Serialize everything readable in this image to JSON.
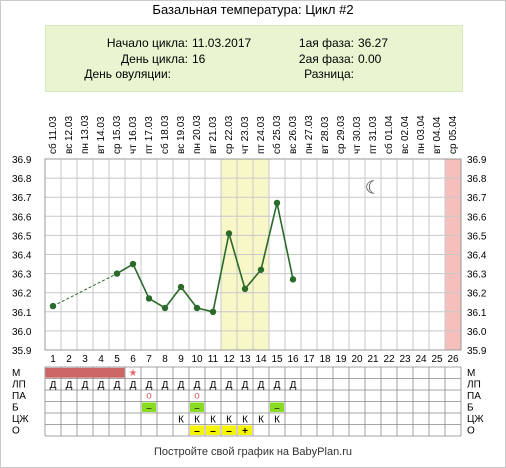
{
  "title": "Базальная температура: Цикл #2",
  "info": {
    "cycle_start_label": "Начало цикла:",
    "cycle_start_value": "11.03.2017",
    "cycle_day_label": "День цикла:",
    "cycle_day_value": "16",
    "ovulation_day_label": "День овуляции:",
    "ovulation_day_value": "",
    "phase1_label": "1ая фаза:",
    "phase1_value": "36.27",
    "phase2_label": "2ая фаза:",
    "phase2_value": "0.00",
    "difference_label": "Разница:",
    "difference_value": ""
  },
  "footer": "Постройте свой график на BabyPlan.ru",
  "colors": {
    "line": "#2a6a2a",
    "grid": "#c8c8c8",
    "highlight": "#f7f7c8",
    "highlight_border": "#e0e0a0",
    "pink": "#f5c0bb",
    "menses_bar": "#cc6666",
    "green_cell": "#88dd22",
    "yellow_cell": "#f5f500",
    "circle_mark": "#d06060",
    "star": "#e07070"
  },
  "chart_data": {
    "type": "line",
    "title": "",
    "ylim": [
      35.9,
      36.9
    ],
    "y_ticks": [
      "36.9",
      "36.8",
      "36.7",
      "36.6",
      "36.5",
      "36.4",
      "36.3",
      "36.2",
      "36.1",
      "36.0",
      "35.9"
    ],
    "days": [
      "1",
      "2",
      "3",
      "4",
      "5",
      "6",
      "7",
      "8",
      "9",
      "10",
      "11",
      "12",
      "13",
      "14",
      "15",
      "16",
      "17",
      "18",
      "19",
      "20",
      "21",
      "22",
      "23",
      "24",
      "25",
      "26"
    ],
    "weekdays": [
      "сб",
      "вс",
      "пн",
      "вт",
      "ср",
      "чт",
      "пт",
      "сб",
      "вс",
      "пн",
      "вт",
      "ср",
      "чт",
      "пт",
      "сб",
      "вс",
      "пн",
      "вт",
      "ср",
      "чт",
      "пт",
      "сб",
      "вс",
      "пн",
      "вт",
      "ср"
    ],
    "dates": [
      "11.03",
      "12.03",
      "13.03",
      "14.03",
      "15.03",
      "16.03",
      "17.03",
      "18.03",
      "19.03",
      "20.03",
      "21.03",
      "22.03",
      "23.03",
      "24.03",
      "25.03",
      "26.03",
      "27.03",
      "28.03",
      "29.03",
      "30.03",
      "31.03",
      "01.04",
      "02.04",
      "03.04",
      "04.04",
      "05.04"
    ],
    "temperatures": [
      {
        "day": 1,
        "value": 36.13
      },
      {
        "day": 5,
        "value": 36.3
      },
      {
        "day": 6,
        "value": 36.35
      },
      {
        "day": 7,
        "value": 36.17
      },
      {
        "day": 8,
        "value": 36.12
      },
      {
        "day": 9,
        "value": 36.23
      },
      {
        "day": 10,
        "value": 36.12
      },
      {
        "day": 11,
        "value": 36.1
      },
      {
        "day": 12,
        "value": 36.51
      },
      {
        "day": 13,
        "value": 36.22
      },
      {
        "day": 14,
        "value": 36.32
      },
      {
        "day": 15,
        "value": 36.67
      },
      {
        "day": 16,
        "value": 36.27
      }
    ],
    "dashed_gap": [
      1,
      5
    ],
    "highlight_days": [
      12,
      13,
      14
    ],
    "today_day": 26,
    "moon_icon_day": 21,
    "moon_icon_value": 36.75
  },
  "symptoms": {
    "rows": [
      "М",
      "ЛП",
      "ПА",
      "Б",
      "ЦЖ",
      "О"
    ],
    "menses_days": [
      1,
      2,
      3,
      4,
      5
    ],
    "star_day": 6,
    "star_glyph": "★",
    "lp_days": [
      1,
      2,
      3,
      4,
      5,
      6,
      7,
      8,
      9,
      10,
      11,
      12,
      13,
      14,
      15,
      16
    ],
    "lp_glyph": "Д",
    "pa_days": [
      7,
      10
    ],
    "pa_glyph": "о",
    "b_days": [
      7,
      10,
      15
    ],
    "b_glyph": "–",
    "czh_days": [
      9,
      10,
      11,
      12,
      13,
      14,
      15
    ],
    "czh_glyph": "К",
    "o_cells": [
      {
        "day": 10,
        "glyph": "–"
      },
      {
        "day": 11,
        "glyph": "–"
      },
      {
        "day": 12,
        "glyph": "–"
      },
      {
        "day": 13,
        "glyph": "+"
      }
    ]
  }
}
